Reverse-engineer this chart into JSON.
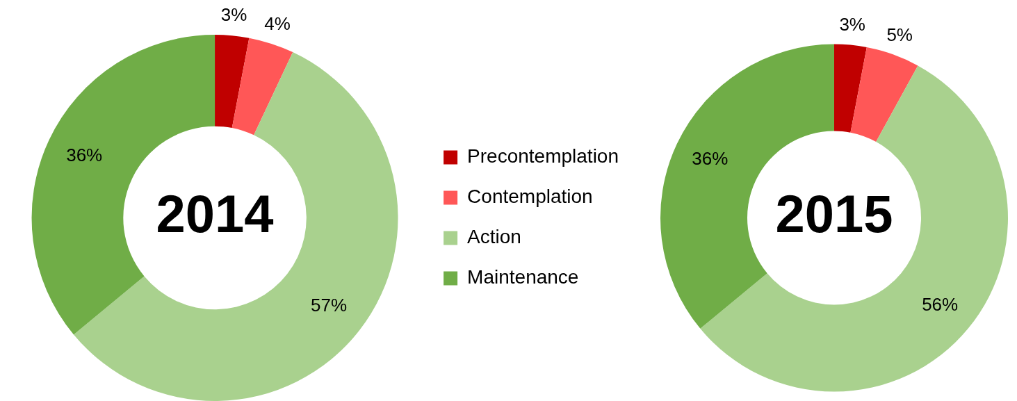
{
  "chart_data": [
    {
      "type": "donut",
      "title": "2014",
      "categories": [
        "Precontemplation",
        "Contemplation",
        "Action",
        "Maintenance"
      ],
      "values": [
        3,
        4,
        57,
        36
      ],
      "value_labels": [
        "3%",
        "4%",
        "57%",
        "36%"
      ],
      "colors": [
        "#c00000",
        "#ff5757",
        "#a9d18e",
        "#70ad47"
      ],
      "legend": "right"
    },
    {
      "type": "donut",
      "title": "2015",
      "categories": [
        null,
        null,
        null,
        null
      ],
      "values": [
        3,
        5,
        56,
        36
      ],
      "value_labels": [
        "3%",
        "5%",
        "56%",
        "36%"
      ],
      "colors": [
        "#c00000",
        "#ff5757",
        "#a9d18e",
        "#70ad47"
      ],
      "legend": false
    }
  ]
}
